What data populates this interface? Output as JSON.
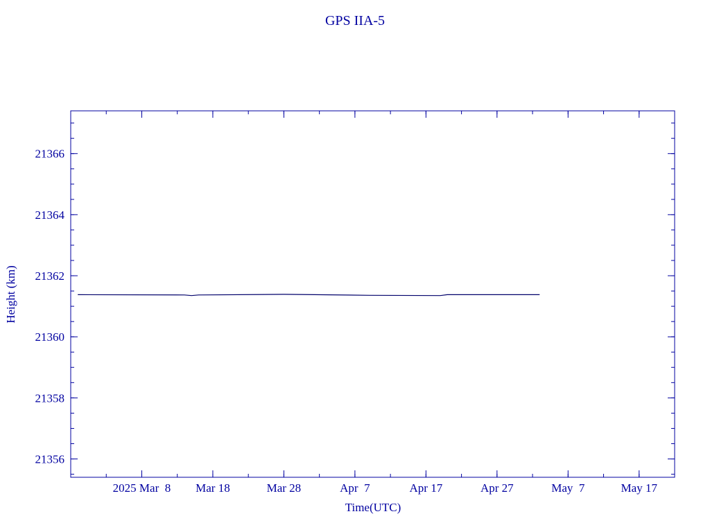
{
  "chart_data": {
    "type": "line",
    "title": "GPS IIA-5",
    "x_label": "Time(UTC)",
    "y_label": "Height (km)",
    "x": [
      "2025-02-27",
      "2025-03-14",
      "2025-03-15",
      "2025-03-16",
      "2025-03-28",
      "2025-04-09",
      "2025-04-19",
      "2025-04-20",
      "2025-05-03"
    ],
    "series": [
      {
        "color": "#00006a",
        "values": [
          21361.38,
          21361.37,
          21361.35,
          21361.37,
          21361.39,
          21361.36,
          21361.35,
          21361.38,
          21361.38
        ]
      }
    ],
    "xlim": [
      "2025-02-26",
      "2025-05-22"
    ],
    "xticks": [
      {
        "value": "2025-03-08",
        "label": "2025 Mar  8"
      },
      {
        "value": "2025-03-18",
        "label": "Mar 18"
      },
      {
        "value": "2025-03-28",
        "label": "Mar 28"
      },
      {
        "value": "2025-04-07",
        "label": "Apr  7"
      },
      {
        "value": "2025-04-17",
        "label": "Apr 17"
      },
      {
        "value": "2025-04-27",
        "label": "Apr 27"
      },
      {
        "value": "2025-05-07",
        "label": "May  7"
      },
      {
        "value": "2025-05-17",
        "label": "May 17"
      }
    ],
    "x_minor_step_days": 5,
    "ylim": [
      21355.4,
      21367.4
    ],
    "yticks": [
      21356,
      21358,
      21360,
      21362,
      21364,
      21366
    ],
    "y_minor_step": 0.5,
    "axis_color": "#0000a0"
  }
}
